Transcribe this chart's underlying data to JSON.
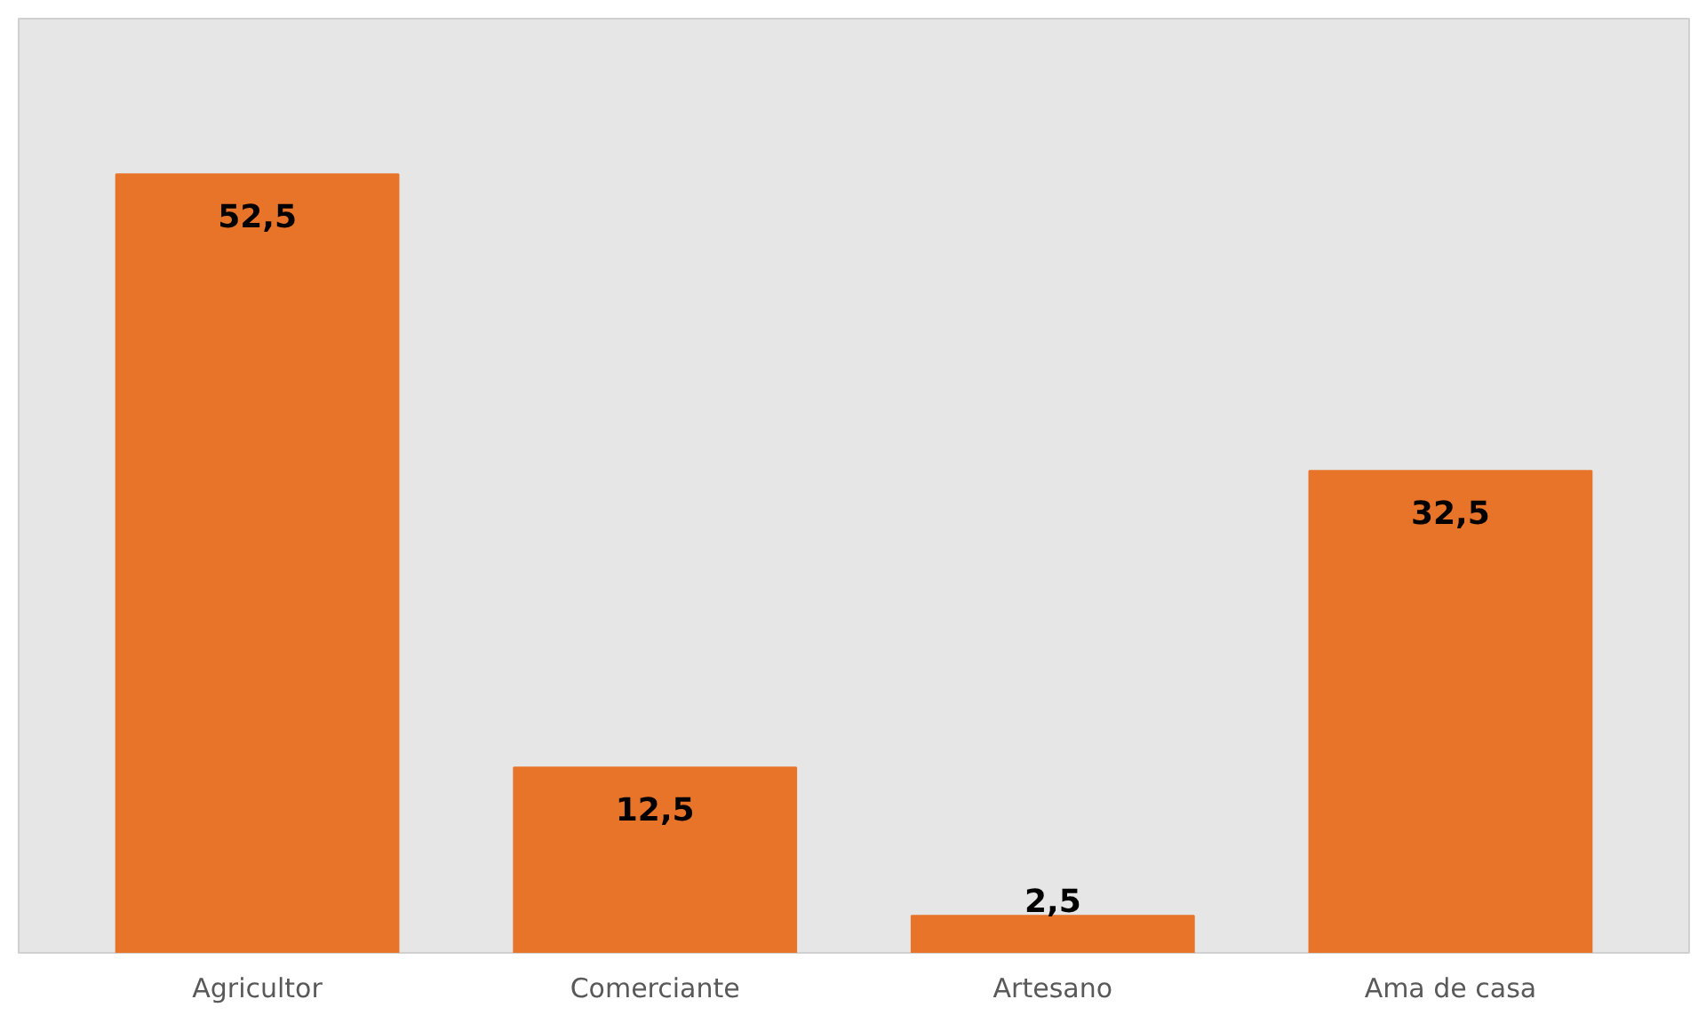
{
  "chart_data": {
    "type": "bar",
    "categories": [
      "Agricultor",
      "Comerciante",
      "Artesano",
      "Ama de casa"
    ],
    "values": [
      52.5,
      12.5,
      2.5,
      32.5
    ],
    "value_labels": [
      "52,5",
      "12,5",
      "2,5",
      "32,5"
    ],
    "color": "#e8742a",
    "grid": false
  }
}
